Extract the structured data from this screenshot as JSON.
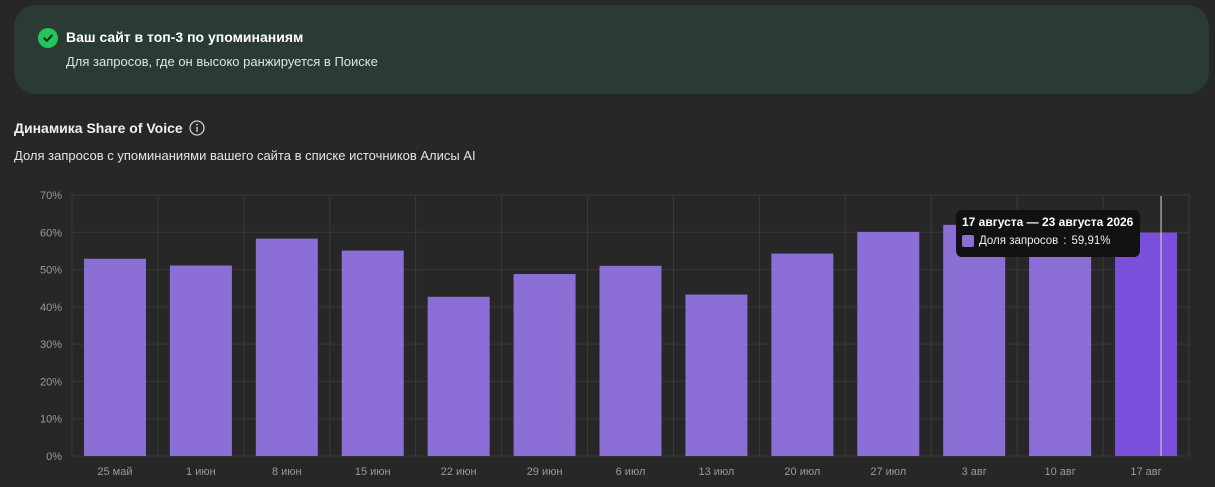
{
  "banner": {
    "title": "Ваш сайт в топ-3 по упоминаниям",
    "subtitle": "Для запросов, где он высоко ранжируется в Поиске",
    "icon": "check-circle-icon",
    "icon_color": "#22c55e"
  },
  "section": {
    "title": "Динамика Share of Voice",
    "subtitle": "Доля запросов с упоминаниями вашего сайта в списке источников Алисы AI",
    "info_icon": "info-icon"
  },
  "tooltip": {
    "title": "17 августа — 23 августа 2026",
    "series_label": "Доля запросов",
    "value_text": "59,91%"
  },
  "chart_data": {
    "type": "bar",
    "categories": [
      "25 май",
      "1 июн",
      "8 июн",
      "15 июн",
      "22 июн",
      "29 июн",
      "6 июл",
      "13 июл",
      "20 июл",
      "27 июл",
      "3 авг",
      "10 авг",
      "17 авг"
    ],
    "series": [
      {
        "name": "Доля запросов",
        "values": [
          52.9,
          51.1,
          58.3,
          55.1,
          42.7,
          48.8,
          51.0,
          43.3,
          54.3,
          60.1,
          62.0,
          61.5,
          59.91
        ]
      }
    ],
    "yticks": [
      "0%",
      "10%",
      "20%",
      "30%",
      "40%",
      "50%",
      "60%",
      "70%"
    ],
    "ylim": [
      0,
      70
    ],
    "grid": true,
    "highlighted_index": 12,
    "bar_color": "#8b6fd6",
    "highlight_color": "#7a4fdb"
  }
}
